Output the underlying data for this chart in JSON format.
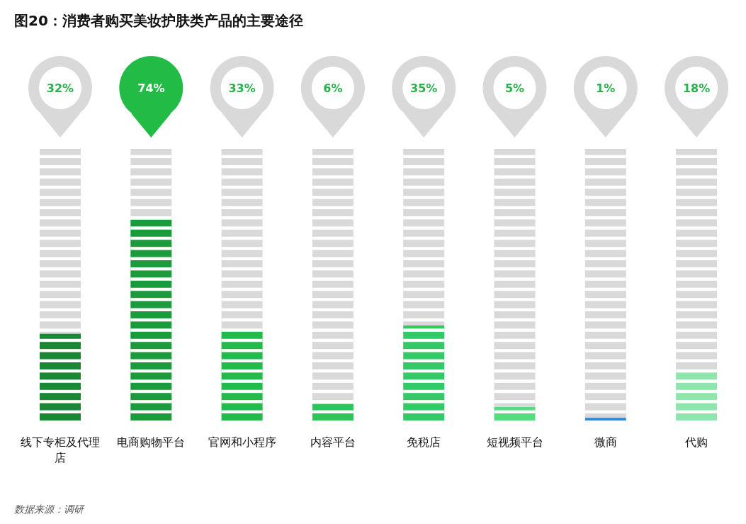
{
  "chart_data": {
    "type": "bar",
    "title": "图20：消费者购买美妆护肤类产品的主要途径",
    "categories": [
      "线下专柜及代理店",
      "电商购物平台",
      "官网和小程序",
      "内容平台",
      "免税店",
      "短视频平台",
      "微商",
      "代购"
    ],
    "stacked": true,
    "series": [
      {
        "colors": [
          "#1a8734",
          "#1c9b3d",
          "#22bb4b",
          "#2ec45a",
          "#33c966",
          "#55dc7f",
          "#2f86d6",
          "#8fe6ad"
        ],
        "values": [
          32,
          74,
          33,
          6,
          35,
          5,
          1,
          18
        ],
        "value_labels": [
          "32%",
          "74%",
          "33%",
          "6%",
          "35%",
          "5%",
          "1%",
          "18%"
        ]
      },
      {
        "color": "#d9d9d9",
        "values": [
          68,
          26,
          67,
          94,
          65,
          95,
          99,
          82
        ]
      }
    ],
    "annotations": [
      "数据来源：调研"
    ]
  }
}
